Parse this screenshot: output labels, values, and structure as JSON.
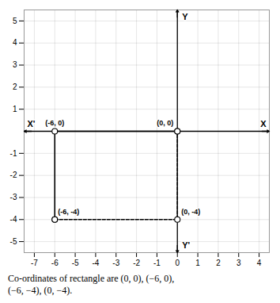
{
  "chart_data": {
    "type": "line",
    "caption": "Co-ordinates of rectangle are (0, 0), (−6, 0),\n(−6, −4), (0, −4).",
    "xlim": [
      -7.5,
      4.5
    ],
    "ylim": [
      -5.5,
      5.5
    ],
    "xticks": [
      -7,
      -6,
      -5,
      -4,
      -3,
      -2,
      -1,
      0,
      1,
      2,
      3,
      4
    ],
    "yticks": [
      -5,
      -4,
      -3,
      -2,
      -1,
      1,
      2,
      3,
      4,
      5
    ],
    "grid": true,
    "series": [
      {
        "x": [
          -6,
          -6,
          0
        ],
        "values": [
          -4,
          0,
          0
        ],
        "line_style": "solid",
        "color": "#000000",
        "marker": "circle"
      },
      {
        "x": [
          -6,
          0,
          0
        ],
        "values": [
          -4,
          -4,
          0
        ],
        "line_style": "dashed",
        "color": "#000000",
        "marker": "circle"
      }
    ],
    "annotations": [
      {
        "text": "X",
        "x": 4.5,
        "y": 0
      },
      {
        "text": "X'",
        "x": -7.5,
        "y": 0
      },
      {
        "text": "Y",
        "x": 0,
        "y": 5.5
      },
      {
        "text": "Y'",
        "x": 0,
        "y": -5.5
      },
      {
        "text": "(-6, 0)",
        "x": -6,
        "y": 0
      },
      {
        "text": "(0, 0)",
        "x": 0,
        "y": 0
      },
      {
        "text": "(-6, -4)",
        "x": -6,
        "y": -4
      },
      {
        "text": "(0, -4)",
        "x": 0,
        "y": -4
      }
    ]
  }
}
